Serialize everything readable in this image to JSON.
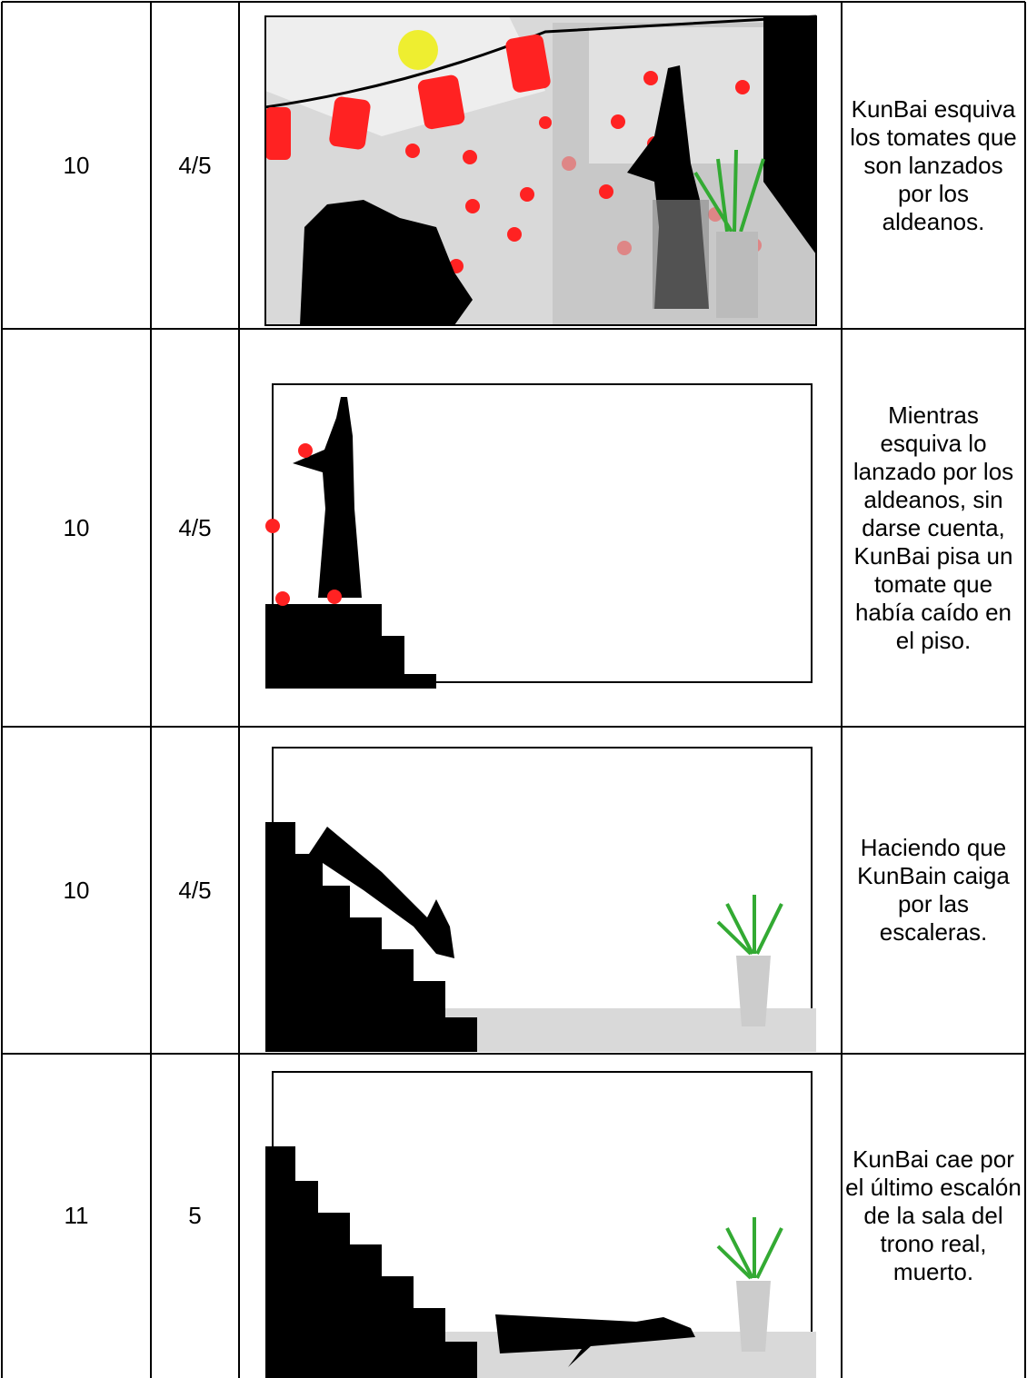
{
  "table": {
    "rows": [
      {
        "scene": "10",
        "time": "4/5",
        "description": "KunBai esquiva los tomates que son lanzados por los aldeanos."
      },
      {
        "scene": "10",
        "time": "4/5",
        "description": "Mientras esquiva lo lanzado por los aldeanos, sin darse cuenta, KunBai pisa un tomate que había caído en el piso."
      },
      {
        "scene": "10",
        "time": "4/5",
        "description": "Haciendo que KunBain caiga por las escaleras."
      },
      {
        "scene": "11",
        "time": "5",
        "description": "KunBai cae por el último escalón de la sala del trono real, muerto."
      }
    ]
  }
}
